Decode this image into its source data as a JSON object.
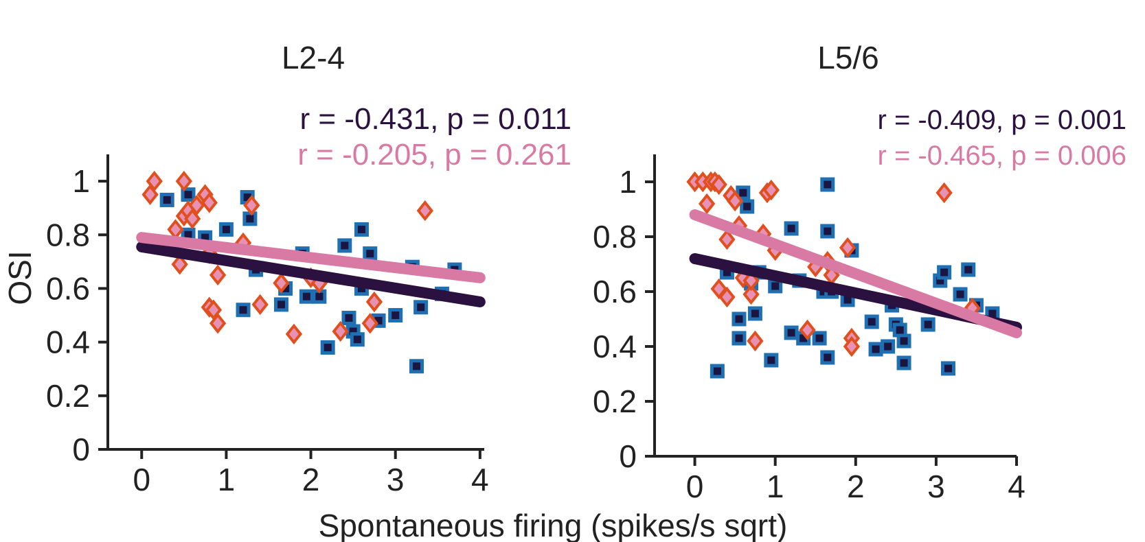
{
  "figure": {
    "ylabel": "OSI",
    "xlabel": "Spontaneous firing (spikes/s sqrt)"
  },
  "colors": {
    "dark_series": "#2b1140",
    "pink_series": "#d97aa5",
    "square_fill": "#1f6fb3",
    "square_inner": "#1b1542",
    "diamond_edge": "#e0501e",
    "diamond_fill": "#e792b4",
    "axis": "#222222"
  },
  "chart_data": [
    {
      "type": "scatter",
      "title": "L2-4",
      "xlim": [
        -0.4,
        4.05
      ],
      "ylim": [
        0,
        1.1
      ],
      "xticks": [
        "0",
        "1",
        "2",
        "3",
        "4"
      ],
      "yticks": [
        "0",
        "0.2",
        "0.4",
        "0.6",
        "0.8",
        "1"
      ],
      "stats": [
        {
          "text": "r = -0.431, p = 0.011",
          "color": "#2b1140"
        },
        {
          "text": "r = -0.205, p = 0.261",
          "color": "#d97aa5"
        }
      ],
      "series": [
        {
          "marker": "square",
          "points": [
            [
              0.3,
              0.93
            ],
            [
              0.55,
              0.95
            ],
            [
              0.55,
              0.8
            ],
            [
              0.75,
              0.79
            ],
            [
              1.0,
              0.82
            ],
            [
              1.25,
              0.94
            ],
            [
              1.28,
              0.86
            ],
            [
              1.35,
              0.67
            ],
            [
              1.2,
              0.52
            ],
            [
              1.7,
              0.6
            ],
            [
              1.65,
              0.54
            ],
            [
              1.9,
              0.73
            ],
            [
              1.95,
              0.57
            ],
            [
              2.1,
              0.57
            ],
            [
              2.2,
              0.38
            ],
            [
              2.4,
              0.76
            ],
            [
              2.45,
              0.49
            ],
            [
              2.5,
              0.44
            ],
            [
              2.55,
              0.41
            ],
            [
              2.6,
              0.6
            ],
            [
              2.6,
              0.82
            ],
            [
              2.7,
              0.73
            ],
            [
              2.8,
              0.48
            ],
            [
              3.0,
              0.5
            ],
            [
              3.2,
              0.68
            ],
            [
              3.25,
              0.31
            ],
            [
              3.3,
              0.53
            ],
            [
              3.55,
              0.58
            ],
            [
              3.7,
              0.67
            ]
          ],
          "fit": [
            [
              0.0,
              0.755
            ],
            [
              4.0,
              0.55
            ]
          ]
        },
        {
          "marker": "diamond",
          "points": [
            [
              0.1,
              0.95
            ],
            [
              0.15,
              1.0
            ],
            [
              0.4,
              0.82
            ],
            [
              0.45,
              0.69
            ],
            [
              0.5,
              1.0
            ],
            [
              0.5,
              0.87
            ],
            [
              0.55,
              0.89
            ],
            [
              0.6,
              0.86
            ],
            [
              0.65,
              0.91
            ],
            [
              0.75,
              0.95
            ],
            [
              0.8,
              0.92
            ],
            [
              0.8,
              0.73
            ],
            [
              0.8,
              0.53
            ],
            [
              0.85,
              0.52
            ],
            [
              0.9,
              0.47
            ],
            [
              0.9,
              0.65
            ],
            [
              1.2,
              0.77
            ],
            [
              1.3,
              0.91
            ],
            [
              1.4,
              0.54
            ],
            [
              1.65,
              0.62
            ],
            [
              1.8,
              0.43
            ],
            [
              2.0,
              0.64
            ],
            [
              2.1,
              0.62
            ],
            [
              2.35,
              0.44
            ],
            [
              2.7,
              0.47
            ],
            [
              2.75,
              0.55
            ],
            [
              3.35,
              0.89
            ]
          ],
          "fit": [
            [
              0.0,
              0.79
            ],
            [
              4.0,
              0.64
            ]
          ]
        }
      ]
    },
    {
      "type": "scatter",
      "title": "L5/6",
      "xlim": [
        -0.5,
        4.0
      ],
      "ylim": [
        0,
        1.1
      ],
      "xticks": [
        "0",
        "1",
        "2",
        "3",
        "4"
      ],
      "yticks": [
        "0",
        "0.2",
        "0.4",
        "0.6",
        "0.8",
        "1"
      ],
      "stats": [
        {
          "text": "r = -0.409, p = 0.001",
          "color": "#2b1140"
        },
        {
          "text": "r = -0.465, p = 0.006",
          "color": "#d97aa5"
        }
      ],
      "series": [
        {
          "marker": "square",
          "points": [
            [
              0.28,
              0.31
            ],
            [
              0.4,
              0.67
            ],
            [
              0.55,
              0.5
            ],
            [
              0.55,
              0.43
            ],
            [
              0.6,
              0.96
            ],
            [
              0.65,
              0.91
            ],
            [
              0.7,
              0.63
            ],
            [
              0.75,
              0.52
            ],
            [
              0.8,
              0.67
            ],
            [
              0.95,
              0.35
            ],
            [
              1.0,
              0.62
            ],
            [
              1.2,
              0.45
            ],
            [
              1.2,
              0.83
            ],
            [
              1.3,
              0.64
            ],
            [
              1.35,
              0.43
            ],
            [
              1.55,
              0.43
            ],
            [
              1.6,
              0.6
            ],
            [
              1.65,
              0.99
            ],
            [
              1.65,
              0.82
            ],
            [
              1.65,
              0.36
            ],
            [
              1.7,
              0.6
            ],
            [
              1.9,
              0.57
            ],
            [
              1.95,
              0.75
            ],
            [
              2.2,
              0.49
            ],
            [
              2.25,
              0.39
            ],
            [
              2.4,
              0.4
            ],
            [
              2.45,
              0.55
            ],
            [
              2.5,
              0.48
            ],
            [
              2.55,
              0.46
            ],
            [
              2.6,
              0.42
            ],
            [
              2.6,
              0.34
            ],
            [
              2.9,
              0.48
            ],
            [
              3.05,
              0.64
            ],
            [
              3.1,
              0.67
            ],
            [
              3.15,
              0.32
            ],
            [
              3.3,
              0.59
            ],
            [
              3.4,
              0.68
            ],
            [
              3.5,
              0.55
            ],
            [
              3.7,
              0.52
            ]
          ],
          "fit": [
            [
              0.0,
              0.72
            ],
            [
              4.0,
              0.47
            ]
          ]
        },
        {
          "marker": "diamond",
          "points": [
            [
              0.0,
              1.0
            ],
            [
              0.1,
              1.0
            ],
            [
              0.15,
              0.92
            ],
            [
              0.2,
              1.0
            ],
            [
              0.25,
              1.0
            ],
            [
              0.3,
              0.99
            ],
            [
              0.3,
              0.61
            ],
            [
              0.4,
              0.79
            ],
            [
              0.4,
              0.58
            ],
            [
              0.45,
              0.95
            ],
            [
              0.5,
              0.93
            ],
            [
              0.55,
              0.84
            ],
            [
              0.6,
              0.65
            ],
            [
              0.7,
              0.59
            ],
            [
              0.7,
              0.64
            ],
            [
              0.75,
              0.42
            ],
            [
              0.85,
              0.81
            ],
            [
              0.9,
              0.96
            ],
            [
              0.95,
              0.97
            ],
            [
              1.0,
              0.75
            ],
            [
              1.4,
              0.46
            ],
            [
              1.5,
              0.69
            ],
            [
              1.65,
              0.71
            ],
            [
              1.7,
              0.66
            ],
            [
              1.9,
              0.76
            ],
            [
              1.95,
              0.43
            ],
            [
              1.95,
              0.4
            ],
            [
              3.1,
              0.96
            ],
            [
              3.45,
              0.54
            ]
          ],
          "fit": [
            [
              0.0,
              0.88
            ],
            [
              4.0,
              0.45
            ]
          ]
        }
      ]
    }
  ]
}
